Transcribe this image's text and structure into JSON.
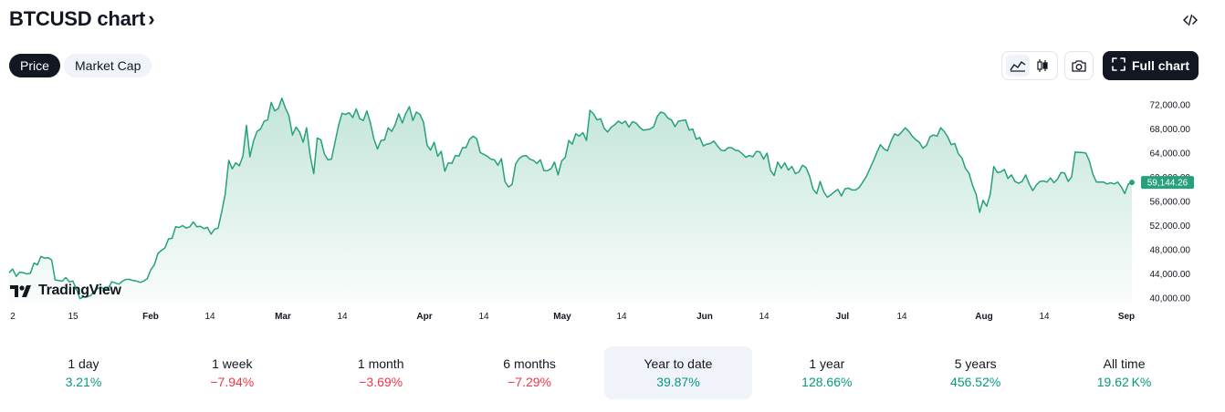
{
  "header": {
    "title": "BTCUSD chart",
    "chevron": "›",
    "embed_icon": "code-icon"
  },
  "tabs": [
    {
      "label": "Price",
      "active": true
    },
    {
      "label": "Market Cap",
      "active": false
    }
  ],
  "toolbar": {
    "area_icon": "area-chart-icon",
    "candles_icon": "candlestick-icon",
    "snapshot_icon": "camera-icon",
    "full_chart_label": "Full chart",
    "full_chart_icon": "expand-icon"
  },
  "brand": {
    "logo_text": "TradingView"
  },
  "chart_data": {
    "type": "area",
    "y_ticks": [
      "72,000.00",
      "68,000.00",
      "64,000.00",
      "60,000.00",
      "56,000.00",
      "52,000.00",
      "48,000.00",
      "44,000.00",
      "40,000.00"
    ],
    "ylim": [
      40000,
      72000
    ],
    "x_labels": [
      {
        "t": "2",
        "major": false
      },
      {
        "t": "15",
        "major": false
      },
      {
        "t": "Feb",
        "major": true
      },
      {
        "t": "14",
        "major": false
      },
      {
        "t": "Mar",
        "major": true
      },
      {
        "t": "14",
        "major": false
      },
      {
        "t": "Apr",
        "major": true
      },
      {
        "t": "14",
        "major": false
      },
      {
        "t": "May",
        "major": true
      },
      {
        "t": "14",
        "major": false
      },
      {
        "t": "Jun",
        "major": true
      },
      {
        "t": "14",
        "major": false
      },
      {
        "t": "Jul",
        "major": true
      },
      {
        "t": "14",
        "major": false
      },
      {
        "t": "Aug",
        "major": true
      },
      {
        "t": "14",
        "major": false
      },
      {
        "t": "Sep",
        "major": true
      }
    ],
    "last_price": "59,144.26",
    "last_value": 59144.26,
    "line_color": "#26a17b",
    "values": [
      44200,
      44800,
      43600,
      44300,
      44200,
      44000,
      44100,
      45800,
      45500,
      46900,
      46600,
      46700,
      46300,
      43000,
      42900,
      42800,
      43400,
      42700,
      42800,
      41500,
      39900,
      40200,
      40200,
      40400,
      41100,
      41600,
      41800,
      41400,
      41600,
      42700,
      42500,
      42300,
      42800,
      43100,
      43100,
      42900,
      42800,
      42600,
      42800,
      43200,
      44700,
      45500,
      47400,
      47900,
      48300,
      49800,
      49900,
      51800,
      51700,
      52000,
      51600,
      51800,
      52600,
      51800,
      51900,
      51500,
      51700,
      50600,
      51400,
      51600,
      54200,
      57200,
      62800,
      61400,
      62400,
      61900,
      63500,
      68600,
      63400,
      66000,
      67600,
      68000,
      69300,
      69500,
      72400,
      71000,
      71400,
      73100,
      71500,
      70200,
      67000,
      68300,
      67500,
      65800,
      68200,
      63600,
      60600,
      66500,
      66200,
      63900,
      62900,
      63000,
      65800,
      68600,
      70600,
      70400,
      70700,
      69900,
      71300,
      69700,
      69400,
      71000,
      69000,
      66300,
      64700,
      66100,
      66200,
      68200,
      67600,
      68700,
      70500,
      69000,
      70600,
      71700,
      69400,
      70800,
      70400,
      69100,
      65300,
      64500,
      65800,
      63500,
      64300,
      61000,
      62400,
      62300,
      63600,
      63500,
      64900,
      64900,
      66300,
      66800,
      66400,
      64100,
      63800,
      63500,
      63000,
      62900,
      62000,
      63100,
      59300,
      58400,
      58800,
      62200,
      63100,
      63500,
      63600,
      63000,
      62800,
      62300,
      62900,
      61100,
      61100,
      61400,
      62500,
      60400,
      62700,
      63300,
      66100,
      65500,
      67200,
      66800,
      67400,
      66100,
      71100,
      70500,
      69500,
      69700,
      68100,
      67500,
      68300,
      68700,
      69300,
      68900,
      69300,
      68300,
      69200,
      69000,
      68300,
      67800,
      67900,
      68000,
      68400,
      70100,
      70800,
      70600,
      69800,
      69500,
      68400,
      69300,
      69400,
      69500,
      67800,
      68000,
      66300,
      66600,
      65200,
      65500,
      65600,
      66000,
      65200,
      64500,
      64400,
      64900,
      64900,
      64500,
      64400,
      63900,
      63300,
      63600,
      63400,
      64300,
      64200,
      63000,
      64000,
      61100,
      60300,
      62500,
      61500,
      62400,
      61200,
      61800,
      60600,
      60900,
      62000,
      61600,
      60200,
      58000,
      57300,
      59300,
      57600,
      56700,
      57100,
      57600,
      58000,
      56900,
      58100,
      58200,
      57900,
      57900,
      58300,
      59200,
      60100,
      61400,
      62700,
      64100,
      65400,
      64700,
      64400,
      66000,
      67200,
      66900,
      67500,
      68200,
      67600,
      66800,
      66200,
      65800,
      64800,
      65300,
      66700,
      67000,
      66800,
      68200,
      67600,
      66700,
      65400,
      65600,
      63900,
      63200,
      61500,
      60700,
      58700,
      57200,
      54200,
      56200,
      55200,
      57200,
      61800,
      60800,
      60900,
      61300,
      59800,
      60400,
      59300,
      59000,
      59300,
      60400,
      58900,
      57800,
      58700,
      59300,
      59400,
      59200,
      59900,
      59100,
      59700,
      60800,
      60700,
      59300,
      60100,
      64200,
      64100,
      64100,
      64000,
      62700,
      60500,
      59200,
      59200,
      59200,
      58900,
      59100,
      58900,
      59200,
      58400,
      57300,
      58900,
      59144
    ]
  },
  "periods": [
    {
      "label": "1 day",
      "value": "3.21%",
      "dir": "pos",
      "selected": false
    },
    {
      "label": "1 week",
      "value": "−7.94%",
      "dir": "neg",
      "selected": false
    },
    {
      "label": "1 month",
      "value": "−3.69%",
      "dir": "neg",
      "selected": false
    },
    {
      "label": "6 months",
      "value": "−7.29%",
      "dir": "neg",
      "selected": false
    },
    {
      "label": "Year to date",
      "value": "39.87%",
      "dir": "pos",
      "selected": true
    },
    {
      "label": "1 year",
      "value": "128.66%",
      "dir": "pos",
      "selected": false
    },
    {
      "label": "5 years",
      "value": "456.52%",
      "dir": "pos",
      "selected": false
    },
    {
      "label": "All time",
      "value": "19.62 K%",
      "dir": "pos",
      "selected": false
    }
  ]
}
